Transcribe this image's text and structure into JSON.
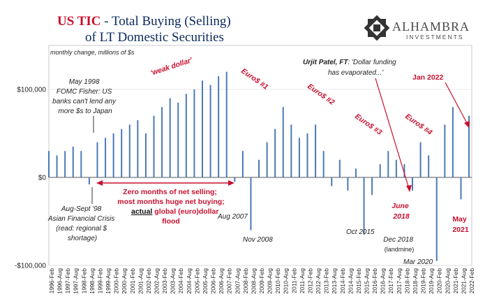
{
  "chart_data": {
    "type": "bar",
    "title_red": "US TIC",
    "title_rest": " - Total Buying (Selling)",
    "title_line2": "of LT Domestic Securities",
    "subtitle": "monthly change, millions of $s",
    "yticks": [
      {
        "value": 100000,
        "label": "$100,000"
      },
      {
        "value": 0,
        "label": "$0"
      },
      {
        "value": -100000,
        "label": "-$100,000"
      }
    ],
    "ylim": [
      -100000,
      150000
    ],
    "xlim": [
      1996.0,
      2022.17
    ],
    "xtick_labels": [
      "1996-Feb",
      "1996-Aug",
      "1997-Feb",
      "1997-Aug",
      "1998-Feb",
      "1998-Aug",
      "1999-Feb",
      "1999-Aug",
      "2000-Feb",
      "2000-Aug",
      "2001-Feb",
      "2001-Aug",
      "2002-Feb",
      "2002-Aug",
      "2003-Feb",
      "2003-Aug",
      "2004-Feb",
      "2004-Aug",
      "2005-Feb",
      "2005-Aug",
      "2006-Feb",
      "2006-Aug",
      "2007-Feb",
      "2007-Aug",
      "2008-Feb",
      "2008-Aug",
      "2009-Feb",
      "2009-Aug",
      "2010-Feb",
      "2010-Aug",
      "2011-Feb",
      "2011-Aug",
      "2012-Feb",
      "2012-Aug",
      "2013-Feb",
      "2013-Aug",
      "2014-Feb",
      "2014-Aug",
      "2015-Feb",
      "2015-Aug",
      "2016-Feb",
      "2016-Aug",
      "2017-Feb",
      "2017-Aug",
      "2018-Feb",
      "2018-Aug",
      "2019-Feb",
      "2019-Aug",
      "2020-Feb",
      "2020-Aug",
      "2021-Feb",
      "2021-Aug",
      "2022-Feb"
    ],
    "bar_color": "#4a7ab5",
    "series": [
      {
        "values": [
          [
            1996.0,
            30000
          ],
          [
            1996.5,
            25000
          ],
          [
            1997.0,
            30000
          ],
          [
            1997.5,
            35000
          ],
          [
            1998.0,
            30000
          ],
          [
            1998.5,
            -8000
          ],
          [
            1999.0,
            40000
          ],
          [
            1999.5,
            45000
          ],
          [
            2000.0,
            50000
          ],
          [
            2000.5,
            55000
          ],
          [
            2001.0,
            60000
          ],
          [
            2001.5,
            65000
          ],
          [
            2002.0,
            50000
          ],
          [
            2002.5,
            70000
          ],
          [
            2003.0,
            80000
          ],
          [
            2003.5,
            90000
          ],
          [
            2004.0,
            85000
          ],
          [
            2004.5,
            95000
          ],
          [
            2005.0,
            100000
          ],
          [
            2005.5,
            110000
          ],
          [
            2006.0,
            105000
          ],
          [
            2006.5,
            115000
          ],
          [
            2007.0,
            120000
          ],
          [
            2007.5,
            -5000
          ],
          [
            2008.0,
            30000
          ],
          [
            2008.5,
            -60000
          ],
          [
            2009.0,
            20000
          ],
          [
            2009.5,
            40000
          ],
          [
            2010.0,
            55000
          ],
          [
            2010.5,
            80000
          ],
          [
            2011.0,
            60000
          ],
          [
            2011.5,
            45000
          ],
          [
            2012.0,
            50000
          ],
          [
            2012.5,
            60000
          ],
          [
            2013.0,
            30000
          ],
          [
            2013.5,
            -10000
          ],
          [
            2014.0,
            20000
          ],
          [
            2014.5,
            -15000
          ],
          [
            2015.0,
            10000
          ],
          [
            2015.5,
            -65000
          ],
          [
            2016.0,
            -20000
          ],
          [
            2016.5,
            15000
          ],
          [
            2017.0,
            30000
          ],
          [
            2017.5,
            20000
          ],
          [
            2018.0,
            15000
          ],
          [
            2018.5,
            -15000
          ],
          [
            2019.0,
            40000
          ],
          [
            2019.5,
            25000
          ],
          [
            2020.0,
            -95000
          ],
          [
            2020.5,
            60000
          ],
          [
            2021.0,
            80000
          ],
          [
            2021.5,
            -25000
          ],
          [
            2022.0,
            70000
          ]
        ]
      }
    ],
    "annotations": {
      "weak_dollar": "'weak dollar'",
      "euro1": "Euro$ #1",
      "euro2": "Euro$ #2",
      "euro3": "Euro$ #3",
      "euro4": "Euro$ #4",
      "may1998": [
        "May 1998",
        "FOMC Fisher: US",
        "banks can't lend any",
        "more $s to Japan"
      ],
      "augsept98": [
        "Aug-Sept '98",
        "Asian Financial Crisis",
        "(read: regional $",
        "shortage)"
      ],
      "zero_months_1": "Zero months of net selling;",
      "zero_months_2": "most months huge net buying;",
      "zero_months_3_under": "actual",
      "zero_months_3_rest": " global (euro)dollar",
      "zero_months_4": "flood",
      "aug2007": "Aug 2007",
      "nov2008": "Nov 2008",
      "patel_bold": "Urjit Patel, FT",
      "patel_rest": ": 'Dollar funding",
      "patel_2": "has evaporated...'",
      "jan2022": "Jan 2022",
      "june2018": [
        "June",
        "2018"
      ],
      "oct2015": "Oct 2015",
      "dec2018": [
        "Dec 2018",
        "(landmine)"
      ],
      "mar2020": "Mar 2020",
      "may2021": [
        "May",
        "2021"
      ]
    }
  },
  "logo": {
    "name": "ALHAMBRA",
    "sub": "INVESTMENTS",
    "icon": "alhambra-star-icon"
  }
}
